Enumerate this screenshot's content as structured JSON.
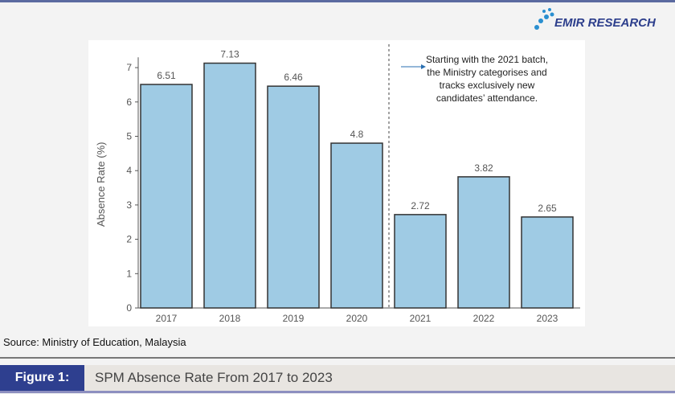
{
  "logo": {
    "text": "EMIR RESEARCH",
    "tm": "™"
  },
  "chart_data": {
    "type": "bar",
    "categories": [
      "2017",
      "2018",
      "2019",
      "2020",
      "2021",
      "2022",
      "2023"
    ],
    "values": [
      6.51,
      7.13,
      6.46,
      4.8,
      2.72,
      3.82,
      2.65
    ],
    "data_labels": [
      "6.51",
      "7.13",
      "6.46",
      "4.8",
      "2.72",
      "3.82",
      "2.65"
    ],
    "ylabel": "Absence Rate (%)",
    "ylim": [
      0,
      7.3
    ],
    "yticks": [
      "0",
      "1",
      "2",
      "3",
      "4",
      "5",
      "6",
      "7"
    ],
    "grid": false,
    "bar_color": "#9fcbe4",
    "bar_edge": "#333333",
    "annotation": {
      "lines": [
        "Starting with the 2021 batch,",
        "the Ministry categorises and",
        "tracks exclusively new",
        "candidates’ attendance."
      ],
      "divider_between": [
        "2020",
        "2021"
      ]
    }
  },
  "source": "Source: Ministry of Education, Malaysia",
  "figure": {
    "label": "Figure 1:",
    "title": "SPM Absence Rate From 2017 to 2023"
  }
}
